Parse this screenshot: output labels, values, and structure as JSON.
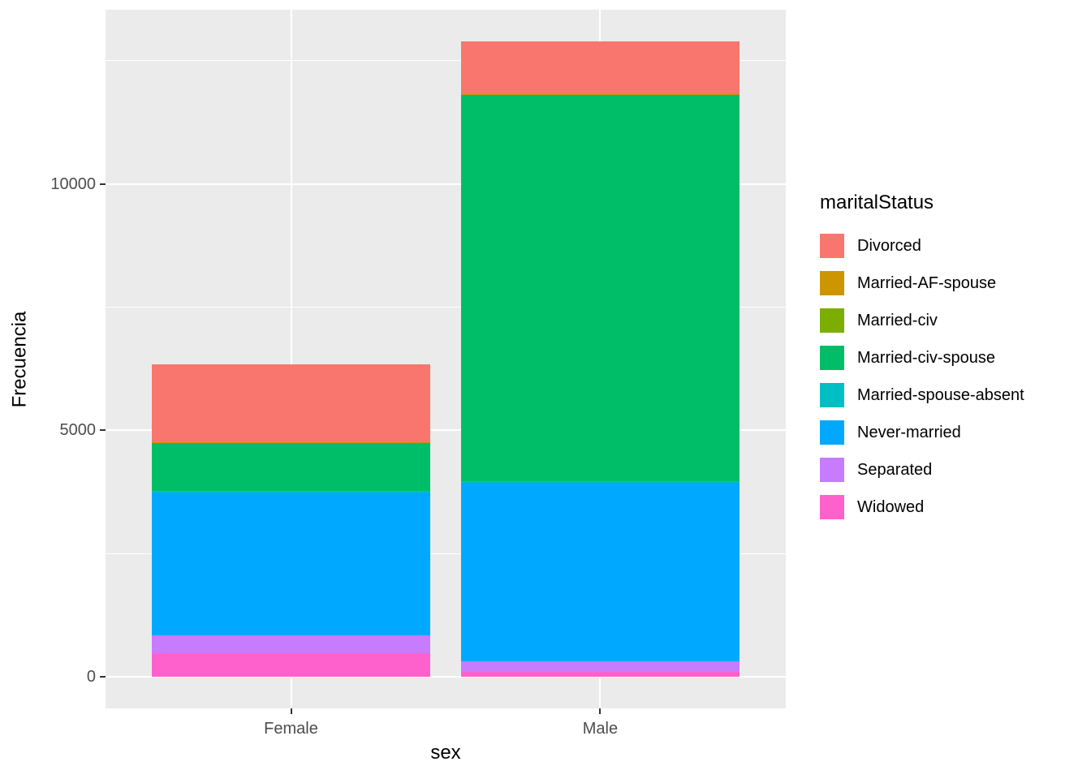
{
  "chart_data": {
    "type": "bar",
    "stacked": true,
    "title": "",
    "xlabel": "sex",
    "ylabel": "Frecuencia",
    "legend_title": "maritalStatus",
    "legend_position": "right",
    "categories": [
      "Female",
      "Male"
    ],
    "series": [
      {
        "name": "Divorced",
        "color": "#F8766D",
        "values": [
          1580,
          1070
        ]
      },
      {
        "name": "Married-AF-spouse",
        "color": "#CD9600",
        "values": [
          3,
          5
        ]
      },
      {
        "name": "Married-civ",
        "color": "#7CAE00",
        "values": [
          5,
          10
        ]
      },
      {
        "name": "Married-civ-spouse",
        "color": "#00BE67",
        "values": [
          985,
          7835
        ]
      },
      {
        "name": "Married-spouse-absent",
        "color": "#00BFC4",
        "values": [
          40,
          40
        ]
      },
      {
        "name": "Never-married",
        "color": "#00A9FF",
        "values": [
          2900,
          3620
        ]
      },
      {
        "name": "Separated",
        "color": "#C77CFF",
        "values": [
          360,
          215
        ]
      },
      {
        "name": "Widowed",
        "color": "#FF61CC",
        "values": [
          470,
          95
        ]
      }
    ],
    "stack_order": "bottom-to-top: Widowed, Separated, Never-married, Married-spouse-absent, Married-civ-spouse, Married-civ, Married-AF-spouse, Divorced",
    "totals": {
      "Female": 6343,
      "Male": 12890
    },
    "ylim": [
      -645,
      13535
    ],
    "y_major_gridlines": [
      0,
      5000,
      10000
    ],
    "y_tick_labels": [
      "0",
      "5000",
      "10000"
    ],
    "y_minor_gridlines": [
      2500,
      7500,
      12500
    ],
    "grid": true
  },
  "style": {
    "page_bg": "#FFFFFF",
    "panel_bg": "#EBEBEB",
    "grid_color": "#FFFFFF",
    "tick_label_color": "#4D4D4D",
    "axis_title_color": "#000000",
    "tick_mark_color": "#333333"
  }
}
